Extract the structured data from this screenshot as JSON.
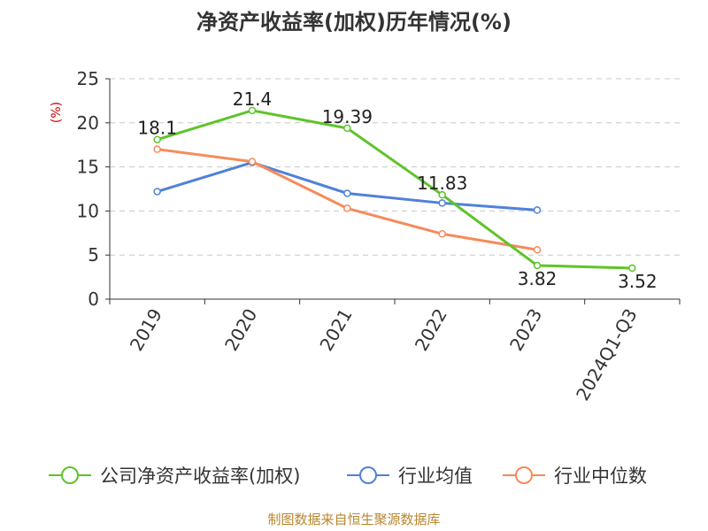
{
  "chart_data": {
    "type": "line",
    "title": "净资产收益率(加权)历年情况(%)",
    "ylabel": "(%)",
    "xlabel": "",
    "categories": [
      "2019",
      "2020",
      "2021",
      "2022",
      "2023",
      "2024Q1-Q3"
    ],
    "ylim": [
      0,
      25
    ],
    "yticks": [
      0,
      5,
      10,
      15,
      20,
      25
    ],
    "grid": true,
    "legend": "bottom",
    "series": [
      {
        "name": "公司净资产收益率(加权)",
        "color": "#5ec42a",
        "values": [
          18.1,
          21.4,
          19.39,
          11.83,
          3.82,
          3.52
        ],
        "labels": [
          "18.1",
          "21.4",
          "19.39",
          "11.83",
          "3.82",
          "3.52"
        ]
      },
      {
        "name": "行业均值",
        "color": "#4f81d8",
        "values": [
          12.2,
          15.5,
          12.0,
          10.9,
          10.1,
          null
        ]
      },
      {
        "name": "行业中位数",
        "color": "#f58b5a",
        "values": [
          17.0,
          15.6,
          10.3,
          7.4,
          5.6,
          null
        ]
      }
    ]
  },
  "source": "制图数据来自恒生聚源数据库"
}
